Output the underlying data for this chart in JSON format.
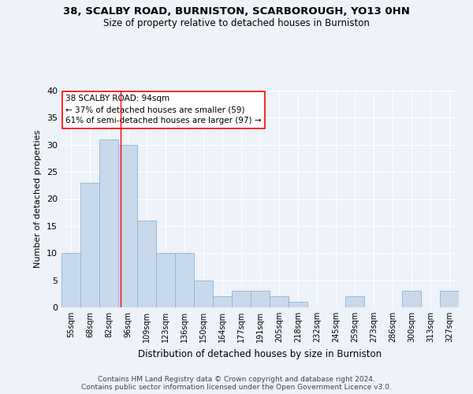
{
  "title1": "38, SCALBY ROAD, BURNISTON, SCARBOROUGH, YO13 0HN",
  "title2": "Size of property relative to detached houses in Burniston",
  "xlabel": "Distribution of detached houses by size in Burniston",
  "ylabel": "Number of detached properties",
  "categories": [
    "55sqm",
    "68sqm",
    "82sqm",
    "96sqm",
    "109sqm",
    "123sqm",
    "136sqm",
    "150sqm",
    "164sqm",
    "177sqm",
    "191sqm",
    "205sqm",
    "218sqm",
    "232sqm",
    "245sqm",
    "259sqm",
    "273sqm",
    "286sqm",
    "300sqm",
    "313sqm",
    "327sqm"
  ],
  "values": [
    10,
    23,
    31,
    30,
    16,
    10,
    10,
    5,
    2,
    3,
    3,
    2,
    1,
    0,
    0,
    2,
    0,
    0,
    3,
    0,
    3
  ],
  "bar_color": "#c9d9ec",
  "bar_edge_color": "#8ab4d4",
  "red_line_x": 2.62,
  "annotation_title": "38 SCALBY ROAD: 94sqm",
  "annotation_line1": "← 37% of detached houses are smaller (59)",
  "annotation_line2": "61% of semi-detached houses are larger (97) →",
  "annotation_box_color": "white",
  "annotation_box_edge": "red",
  "ylim": [
    0,
    40
  ],
  "yticks": [
    0,
    5,
    10,
    15,
    20,
    25,
    30,
    35,
    40
  ],
  "footer1": "Contains HM Land Registry data © Crown copyright and database right 2024.",
  "footer2": "Contains public sector information licensed under the Open Government Licence v3.0.",
  "background_color": "#eef2f9",
  "grid_color": "white"
}
